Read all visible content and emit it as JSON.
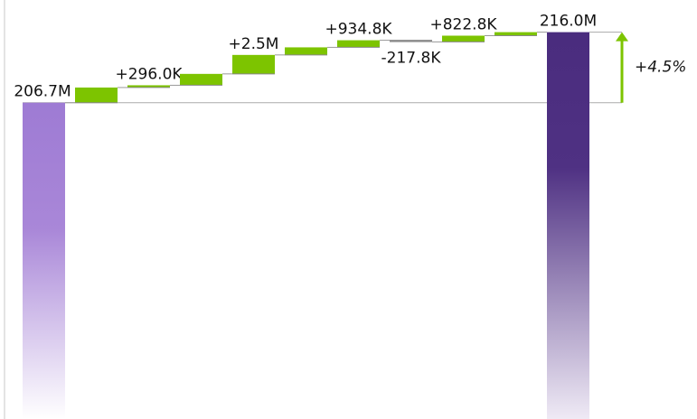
{
  "chart_data": {
    "type": "waterfall",
    "values": [
      206.7,
      2.0,
      0.296,
      1.5,
      2.5,
      1.0,
      0.9348,
      -0.2178,
      0.8228,
      0.464,
      216.0
    ],
    "value_labels": [
      "206.7M",
      null,
      "+296.0K",
      null,
      "+2.5M",
      null,
      "+934.8K",
      "-217.8K",
      "+822.8K",
      null,
      "216.0M"
    ],
    "ylim": [
      165,
      217.5
    ],
    "colors": {
      "start": "#9e7bd4",
      "end": "#4a2c7e",
      "increase": "#7dc400",
      "decrease": "#8c8c8c"
    },
    "annotation": "+4.5%"
  }
}
